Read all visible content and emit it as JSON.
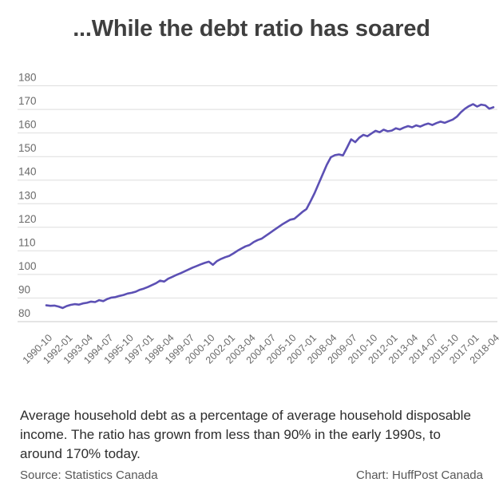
{
  "title": "...While the debt ratio has soared",
  "caption": {
    "text": "Average household debt as a percentage of average household disposable income. The ratio has grown from less than 90% in the early 1990s, to around 170% today."
  },
  "footer": {
    "source": "Source: Statistics Canada",
    "credit": "Chart: HuffPost Canada"
  },
  "chart_data": {
    "type": "line",
    "title": "...While the debt ratio has soared",
    "xlabel": "",
    "ylabel": "",
    "frequency": "quarterly",
    "x_start": "1990-10",
    "x_end": "2018-04",
    "ylim": [
      80,
      180
    ],
    "y_ticks": [
      80,
      90,
      100,
      110,
      120,
      130,
      140,
      150,
      160,
      170,
      180
    ],
    "grid": "horizontal",
    "legend": "none",
    "line_color": "#5c50b4",
    "grid_color": "#dedede",
    "baseline_color": "#c9c9c9",
    "tick_interval": 5,
    "tick_labels": [
      "1990-10",
      "1992-01",
      "1993-04",
      "1994-07",
      "1995-10",
      "1997-01",
      "1998-04",
      "1999-07",
      "2000-10",
      "2002-01",
      "2003-04",
      "2004-07",
      "2005-10",
      "2007-01",
      "2008-04",
      "2009-07",
      "2010-10",
      "2012-01",
      "2013-04",
      "2014-07",
      "2015-10",
      "2017-01",
      "2018-04"
    ],
    "values": [
      86.9,
      86.7,
      86.8,
      86.4,
      85.8,
      86.6,
      87.1,
      87.4,
      87.2,
      87.7,
      88.0,
      88.5,
      88.3,
      89.1,
      88.7,
      89.6,
      90.2,
      90.4,
      90.9,
      91.3,
      91.9,
      92.2,
      92.7,
      93.5,
      94.0,
      94.7,
      95.5,
      96.3,
      97.4,
      97.0,
      98.2,
      99.0,
      99.8,
      100.5,
      101.3,
      102.1,
      102.9,
      103.6,
      104.3,
      104.9,
      105.4,
      104.1,
      105.7,
      106.6,
      107.3,
      107.9,
      108.9,
      110.0,
      111.0,
      111.9,
      112.5,
      113.7,
      114.6,
      115.2,
      116.4,
      117.6,
      118.8,
      120.0,
      121.2,
      122.2,
      123.2,
      123.6,
      125.0,
      126.5,
      127.7,
      131.0,
      134.5,
      138.5,
      142.5,
      146.5,
      149.7,
      150.6,
      150.9,
      150.5,
      153.8,
      157.3,
      156.1,
      158.0,
      159.2,
      158.6,
      159.8,
      160.9,
      160.3,
      161.4,
      160.7,
      161.0,
      162.0,
      161.5,
      162.3,
      162.9,
      162.4,
      163.2,
      162.7,
      163.5,
      164.0,
      163.4,
      164.2,
      164.8,
      164.3,
      165.0,
      165.7,
      166.9,
      168.8,
      170.3,
      171.4,
      172.2,
      171.2,
      172.0,
      171.7,
      170.3,
      170.9
    ]
  }
}
